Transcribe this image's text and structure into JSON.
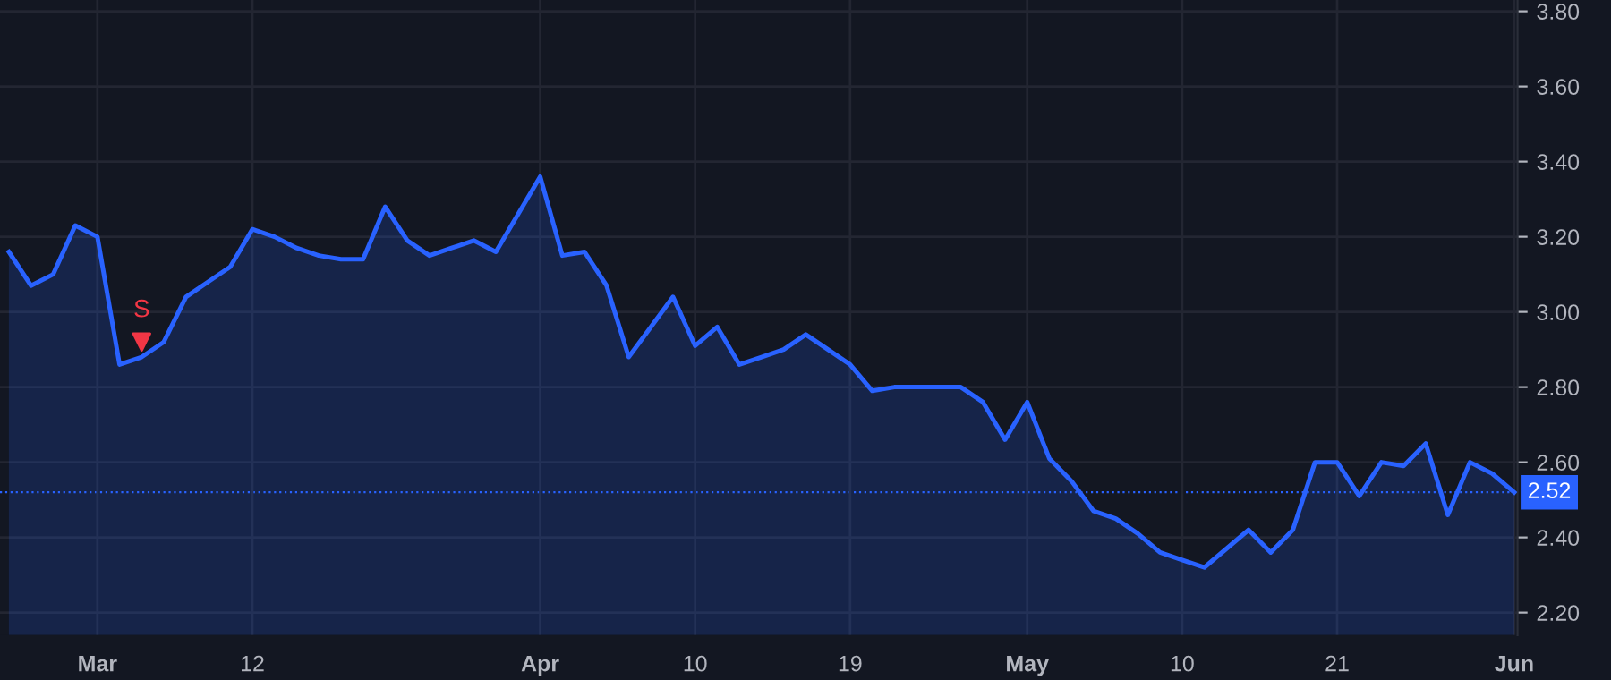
{
  "chart_data": {
    "type": "area",
    "categories": [
      null,
      null,
      null,
      null,
      "Mar",
      null,
      null,
      null,
      null,
      null,
      null,
      "12",
      null,
      null,
      null,
      null,
      null,
      null,
      null,
      null,
      null,
      null,
      null,
      null,
      "Apr",
      null,
      null,
      null,
      null,
      null,
      null,
      "10",
      null,
      null,
      null,
      null,
      null,
      null,
      "19",
      null,
      null,
      null,
      null,
      null,
      null,
      null,
      "May",
      null,
      null,
      null,
      null,
      null,
      null,
      "10",
      null,
      null,
      null,
      null,
      null,
      null,
      "21",
      null,
      null,
      null,
      null,
      null,
      null,
      null,
      "Jun"
    ],
    "series": [
      {
        "color": "#2962ff",
        "values": [
          3.16,
          3.07,
          3.1,
          3.23,
          3.2,
          2.86,
          2.88,
          2.92,
          3.04,
          3.08,
          3.12,
          3.22,
          3.2,
          3.17,
          3.15,
          3.14,
          3.14,
          3.28,
          3.19,
          3.15,
          3.17,
          3.19,
          3.16,
          3.26,
          3.36,
          3.15,
          3.16,
          3.07,
          2.88,
          2.96,
          3.04,
          2.91,
          2.96,
          2.86,
          2.88,
          2.9,
          2.94,
          2.9,
          2.86,
          2.79,
          2.8,
          2.8,
          2.8,
          2.8,
          2.76,
          2.66,
          2.76,
          2.61,
          2.55,
          2.47,
          2.45,
          2.41,
          2.36,
          2.34,
          2.32,
          2.37,
          2.42,
          2.36,
          2.42,
          2.6,
          2.6,
          2.51,
          2.6,
          2.59,
          2.65,
          2.46,
          2.6,
          2.57,
          2.52
        ]
      },
      {
        "type": "scatter",
        "name": "S",
        "color": "#f23645",
        "marker": "triangle",
        "values": [
          null,
          null,
          null,
          null,
          null,
          null,
          2.92,
          null,
          null,
          null,
          null,
          null,
          null,
          null,
          null,
          null,
          null,
          null,
          null,
          null,
          null,
          null,
          null,
          null,
          null,
          null,
          null,
          null,
          null,
          null,
          null,
          null,
          null,
          null,
          null,
          null,
          null,
          null,
          null,
          null,
          null,
          null,
          null,
          null,
          null,
          null,
          null,
          null,
          null,
          null,
          null,
          null,
          null,
          null,
          null,
          null,
          null,
          null,
          null,
          null,
          null,
          null,
          null,
          null,
          null,
          null,
          null,
          null,
          null
        ]
      }
    ],
    "ylim": [
      2.14,
      3.83
    ],
    "yticks": [
      {
        "value": 2.2,
        "label": "2.20"
      },
      {
        "value": 2.4,
        "label": "2.40"
      },
      {
        "value": 2.6,
        "label": "2.60"
      },
      {
        "value": 2.8,
        "label": "2.80"
      },
      {
        "value": 3.0,
        "label": "3.00"
      },
      {
        "value": 3.2,
        "label": "3.20"
      },
      {
        "value": 3.4,
        "label": "3.40"
      },
      {
        "value": 3.6,
        "label": "3.60"
      },
      {
        "value": 3.8,
        "label": "3.80"
      }
    ],
    "ref_lines": [
      {
        "axis": "y",
        "value": 2.52,
        "label": "2.52",
        "color": "#2962ff",
        "line_style": "dotted"
      }
    ],
    "grid": true,
    "legend": false
  }
}
